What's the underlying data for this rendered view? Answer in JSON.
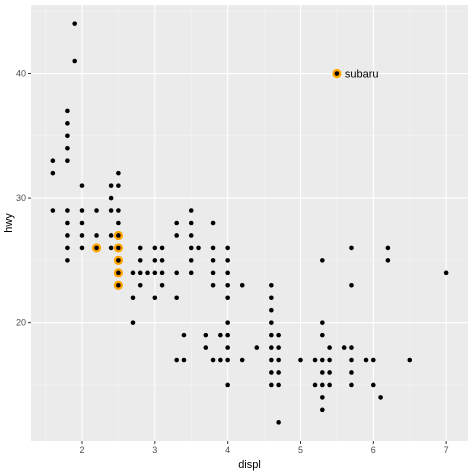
{
  "chart_data": {
    "type": "scatter",
    "xlabel": "displ",
    "ylabel": "hwy",
    "xlim": [
      1.3,
      7.3
    ],
    "ylim": [
      10.5,
      45.5
    ],
    "x_ticks": [
      2,
      3,
      4,
      5,
      6,
      7
    ],
    "y_ticks": [
      20,
      30,
      40
    ],
    "grid": true,
    "colors": {
      "panel": "#ebebeb",
      "grid_major": "#ffffff",
      "grid_minor": "#f5f5f5",
      "point": "#000000",
      "highlight": "#ffa500"
    },
    "points": [
      [
        1.6,
        33
      ],
      [
        1.6,
        32
      ],
      [
        1.6,
        29
      ],
      [
        1.8,
        37
      ],
      [
        1.8,
        36
      ],
      [
        1.8,
        35
      ],
      [
        1.8,
        34
      ],
      [
        1.8,
        33
      ],
      [
        1.8,
        29
      ],
      [
        1.8,
        28
      ],
      [
        1.8,
        27
      ],
      [
        1.8,
        26
      ],
      [
        1.8,
        25
      ],
      [
        1.9,
        44
      ],
      [
        1.9,
        41
      ],
      [
        2.0,
        31
      ],
      [
        2.0,
        29
      ],
      [
        2.0,
        28
      ],
      [
        2.0,
        27
      ],
      [
        2.0,
        26
      ],
      [
        2.2,
        29
      ],
      [
        2.2,
        27
      ],
      [
        2.2,
        26
      ],
      [
        2.4,
        31
      ],
      [
        2.4,
        30
      ],
      [
        2.4,
        29
      ],
      [
        2.4,
        27
      ],
      [
        2.4,
        26
      ],
      [
        2.5,
        32
      ],
      [
        2.5,
        31
      ],
      [
        2.5,
        29
      ],
      [
        2.5,
        28
      ],
      [
        2.5,
        27
      ],
      [
        2.5,
        26
      ],
      [
        2.5,
        25
      ],
      [
        2.5,
        24
      ],
      [
        2.5,
        23
      ],
      [
        2.7,
        24
      ],
      [
        2.7,
        22
      ],
      [
        2.7,
        20
      ],
      [
        2.8,
        26
      ],
      [
        2.8,
        25
      ],
      [
        2.8,
        24
      ],
      [
        2.8,
        23
      ],
      [
        2.9,
        24
      ],
      [
        3.0,
        26
      ],
      [
        3.0,
        25
      ],
      [
        3.0,
        24
      ],
      [
        3.0,
        22
      ],
      [
        3.1,
        26
      ],
      [
        3.1,
        25
      ],
      [
        3.1,
        24
      ],
      [
        3.1,
        23
      ],
      [
        3.3,
        28
      ],
      [
        3.3,
        27
      ],
      [
        3.3,
        24
      ],
      [
        3.3,
        22
      ],
      [
        3.3,
        17
      ],
      [
        3.4,
        19
      ],
      [
        3.4,
        17
      ],
      [
        3.5,
        29
      ],
      [
        3.5,
        28
      ],
      [
        3.5,
        27
      ],
      [
        3.5,
        26
      ],
      [
        3.5,
        25
      ],
      [
        3.5,
        24
      ],
      [
        3.6,
        26
      ],
      [
        3.7,
        19
      ],
      [
        3.7,
        18
      ],
      [
        3.8,
        28
      ],
      [
        3.8,
        26
      ],
      [
        3.8,
        25
      ],
      [
        3.8,
        24
      ],
      [
        3.8,
        23
      ],
      [
        3.8,
        17
      ],
      [
        3.9,
        19
      ],
      [
        3.9,
        17
      ],
      [
        4.0,
        26
      ],
      [
        4.0,
        25
      ],
      [
        4.0,
        24
      ],
      [
        4.0,
        23
      ],
      [
        4.0,
        22
      ],
      [
        4.0,
        20
      ],
      [
        4.0,
        19
      ],
      [
        4.0,
        18
      ],
      [
        4.0,
        17
      ],
      [
        4.0,
        15
      ],
      [
        4.2,
        23
      ],
      [
        4.2,
        17
      ],
      [
        4.4,
        18
      ],
      [
        4.6,
        23
      ],
      [
        4.6,
        22
      ],
      [
        4.6,
        21
      ],
      [
        4.6,
        20
      ],
      [
        4.6,
        19
      ],
      [
        4.6,
        18
      ],
      [
        4.6,
        17
      ],
      [
        4.6,
        16
      ],
      [
        4.6,
        15
      ],
      [
        4.7,
        19
      ],
      [
        4.7,
        18
      ],
      [
        4.7,
        17
      ],
      [
        4.7,
        16
      ],
      [
        4.7,
        15
      ],
      [
        4.7,
        12
      ],
      [
        5.0,
        17
      ],
      [
        5.2,
        17
      ],
      [
        5.2,
        15
      ],
      [
        5.3,
        25
      ],
      [
        5.3,
        20
      ],
      [
        5.3,
        19
      ],
      [
        5.3,
        17
      ],
      [
        5.3,
        16
      ],
      [
        5.3,
        15
      ],
      [
        5.3,
        14
      ],
      [
        5.3,
        13
      ],
      [
        5.4,
        18
      ],
      [
        5.4,
        17
      ],
      [
        5.4,
        16
      ],
      [
        5.4,
        15
      ],
      [
        5.5,
        40
      ],
      [
        5.6,
        18
      ],
      [
        5.7,
        26
      ],
      [
        5.7,
        23
      ],
      [
        5.7,
        18
      ],
      [
        5.7,
        17
      ],
      [
        5.7,
        16
      ],
      [
        5.7,
        15
      ],
      [
        5.9,
        17
      ],
      [
        6.0,
        17
      ],
      [
        6.0,
        15
      ],
      [
        6.1,
        14
      ],
      [
        6.2,
        26
      ],
      [
        6.2,
        25
      ],
      [
        6.5,
        17
      ],
      [
        7.0,
        24
      ]
    ],
    "highlighted": [
      [
        2.5,
        27
      ],
      [
        2.5,
        26
      ],
      [
        2.5,
        25
      ],
      [
        2.5,
        24
      ],
      [
        2.5,
        23
      ],
      [
        2.2,
        26
      ],
      [
        5.5,
        40
      ]
    ],
    "annotation": {
      "x": 5.5,
      "y": 40,
      "label": "subaru"
    }
  }
}
